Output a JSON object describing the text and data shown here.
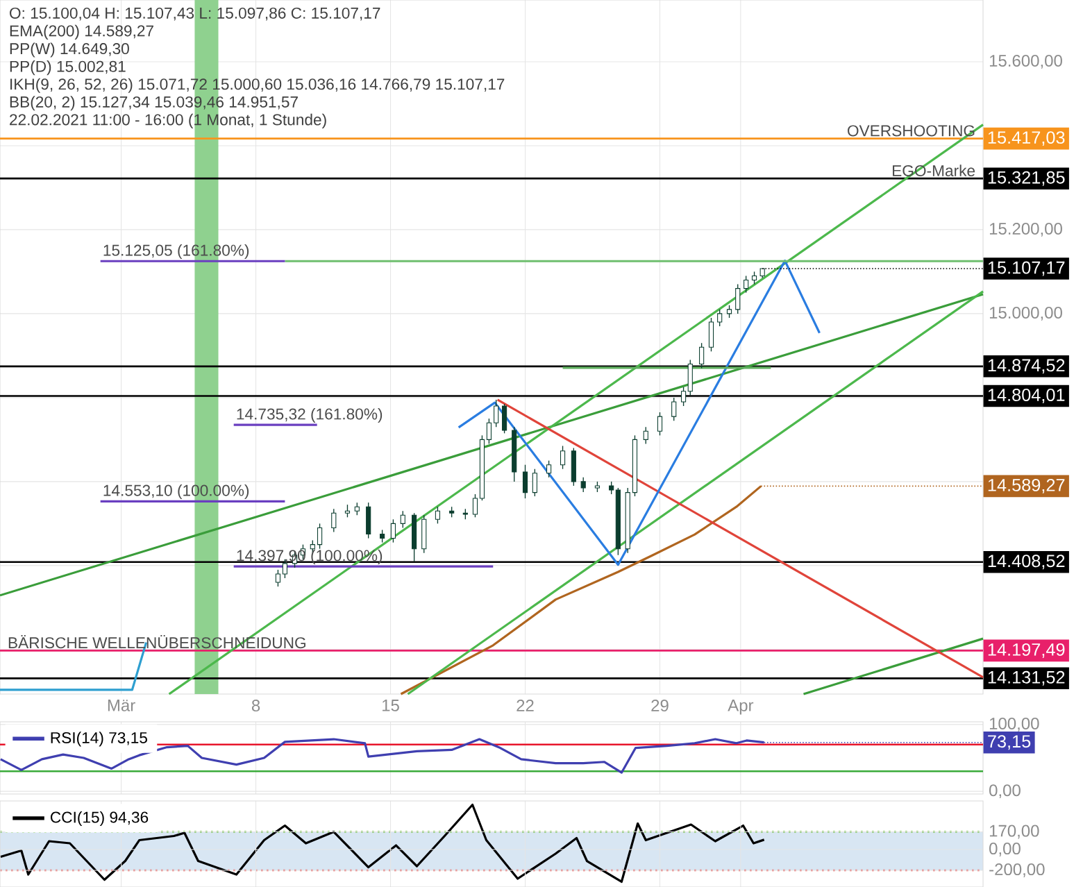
{
  "chart_data": [
    {
      "type": "candlestick",
      "title": "O: 15.100,04  H: 15.107,43  L: 15.097,86  C: 15.107,17",
      "subtitle": "22.02.2021 11:00 - 16:00  (1 Monat, 1 Stunde)",
      "xlim": [
        -5.3,
        45.8
      ],
      "ylim": [
        14094,
        15747
      ],
      "xticks": [
        {
          "value": 1,
          "label": "Mär"
        },
        8,
        15,
        22,
        29,
        {
          "value": 33.2,
          "label": "Apr"
        }
      ],
      "yticks": [
        {
          "value": 14200,
          "label": null
        },
        {
          "value": 14400,
          "label": null
        },
        {
          "value": 14600,
          "label": null
        },
        {
          "value": 14800,
          "label": null
        },
        {
          "value": 15000,
          "label": "15.000,00"
        },
        {
          "value": 15200,
          "label": "15.200,00"
        },
        {
          "value": 15400,
          "label": null
        },
        {
          "value": 15600,
          "label": "15.600,00"
        }
      ],
      "grid": true,
      "x": [
        9.15,
        9.51,
        10.02,
        10.45,
        10.95,
        11.32,
        12.05,
        12.76,
        13.26,
        13.85,
        14.57,
        15.14,
        15.64,
        16.23,
        16.74,
        17.45,
        18.18,
        18.89,
        19.4,
        19.76,
        20.12,
        20.49,
        20.92,
        21.43,
        22.0,
        22.5,
        23.23,
        23.95,
        24.52,
        25.02,
        25.75,
        26.48,
        26.83,
        27.33,
        27.7,
        28.27,
        29.0,
        29.73,
        30.23,
        30.58,
        31.17,
        31.67,
        32.11,
        32.61,
        33.05,
        33.48,
        33.91,
        34.33
      ],
      "ohlc": [
        [
          14360,
          14390,
          14350,
          14380
        ],
        [
          14380,
          14415,
          14370,
          14405
        ],
        [
          14405,
          14435,
          14395,
          14425
        ],
        [
          14425,
          14450,
          14415,
          14440
        ],
        [
          14440,
          14460,
          14430,
          14450
        ],
        [
          14450,
          14500,
          14440,
          14490
        ],
        [
          14490,
          14535,
          14480,
          14525
        ],
        [
          14525,
          14545,
          14515,
          14530
        ],
        [
          14530,
          14550,
          14520,
          14540
        ],
        [
          14540,
          14550,
          14465,
          14475
        ],
        [
          14475,
          14485,
          14455,
          14465
        ],
        [
          14465,
          14510,
          14455,
          14500
        ],
        [
          14500,
          14530,
          14490,
          14520
        ],
        [
          14520,
          14525,
          14410,
          14440
        ],
        [
          14440,
          14520,
          14430,
          14510
        ],
        [
          14510,
          14540,
          14500,
          14530
        ],
        [
          14530,
          14540,
          14515,
          14525
        ],
        [
          14525,
          14535,
          14510,
          14522
        ],
        [
          14522,
          14570,
          14515,
          14560
        ],
        [
          14560,
          14710,
          14555,
          14700
        ],
        [
          14700,
          14750,
          14690,
          14740
        ],
        [
          14740,
          14795,
          14730,
          14780
        ],
        [
          14780,
          14785,
          14715,
          14722
        ],
        [
          14722,
          14730,
          14600,
          14623
        ],
        [
          14623,
          14640,
          14560,
          14574
        ],
        [
          14574,
          14630,
          14565,
          14620
        ],
        [
          14620,
          14650,
          14610,
          14640
        ],
        [
          14640,
          14685,
          14630,
          14673
        ],
        [
          14673,
          14680,
          14590,
          14600
        ],
        [
          14600,
          14610,
          14575,
          14585
        ],
        [
          14585,
          14600,
          14575,
          14590
        ],
        [
          14590,
          14600,
          14570,
          14580
        ],
        [
          14580,
          14585,
          14425,
          14440
        ],
        [
          14440,
          14585,
          14430,
          14574
        ],
        [
          14574,
          14710,
          14565,
          14700
        ],
        [
          14700,
          14730,
          14690,
          14720
        ],
        [
          14720,
          14765,
          14710,
          14755
        ],
        [
          14755,
          14800,
          14745,
          14790
        ],
        [
          14790,
          14825,
          14780,
          14815
        ],
        [
          14815,
          14890,
          14805,
          14880
        ],
        [
          14880,
          14930,
          14870,
          14920
        ],
        [
          14920,
          14990,
          14910,
          14980
        ],
        [
          14980,
          15010,
          14970,
          15000
        ],
        [
          15000,
          15020,
          14990,
          15010
        ],
        [
          15010,
          15070,
          15000,
          15060
        ],
        [
          15060,
          15090,
          15050,
          15080
        ],
        [
          15080,
          15100,
          15070,
          15090
        ],
        [
          15090,
          15107.43,
          15085,
          15107.17
        ]
      ],
      "series": [
        {
          "type": "line",
          "color": "#b0651f",
          "x": [
            15.54,
            20.33,
            23.58,
            26.83,
            28.64,
            30.81,
            32.98,
            34.26
          ],
          "values": [
            14094,
            14210,
            14319,
            14385,
            14425,
            14474,
            14540,
            14589.27
          ]
        },
        {
          "type": "line",
          "color": "#3a9d3a",
          "x": [
            -5.3,
            45.8
          ],
          "values": [
            14329,
            15046
          ]
        },
        {
          "type": "line",
          "color": "#4cb84c",
          "x": [
            3.49,
            45.8
          ],
          "values": [
            14094,
            15450
          ]
        },
        {
          "type": "line",
          "color": "#4cb84c",
          "x": [
            15.9,
            45.8
          ],
          "values": [
            14094,
            15053
          ]
        },
        {
          "type": "line",
          "color": "#3a9d3a",
          "x": [
            36.47,
            45.8
          ],
          "values": [
            14094,
            14226
          ]
        },
        {
          "type": "line",
          "color": "#e0443a",
          "x": [
            20.56,
            45.8
          ],
          "values": [
            14795,
            14134
          ]
        },
        {
          "type": "line",
          "color": "#2a7de1",
          "x": [
            18.54,
            20.42,
            26.83,
            35.5,
            37.3
          ],
          "values": [
            14729,
            14788,
            14402,
            15126,
            14954
          ]
        },
        {
          "type": "line",
          "color": "#2e9fd0",
          "x": [
            -5.3,
            1.57,
            2.3
          ],
          "values": [
            14104,
            14104,
            14217
          ]
        },
        {
          "type": "line",
          "color": "#5fae5f",
          "x": [
            23.95,
            34.77
          ],
          "values": [
            14871,
            14871
          ]
        },
        {
          "type": "line",
          "color": "#6fbf6f",
          "x": [
            9.51,
            45.8
          ],
          "values": [
            15125,
            15125
          ]
        },
        {
          "type": "line",
          "color": "#6a3fc0",
          "x": [
            -0.08,
            9.51
          ],
          "values": [
            15125,
            15125
          ]
        },
        {
          "type": "line",
          "color": "#6a3fc0",
          "x": [
            6.85,
            11.18
          ],
          "values": [
            14735,
            14735
          ]
        },
        {
          "type": "line",
          "color": "#6a3fc0",
          "x": [
            -0.08,
            9.51
          ],
          "values": [
            14553,
            14553
          ]
        },
        {
          "type": "line",
          "color": "#6a3fc0",
          "x": [
            6.85,
            20.33
          ],
          "values": [
            14398,
            14398
          ]
        }
      ],
      "bands": [
        {
          "axis": "x",
          "from": 4.82,
          "to": 6.05,
          "color": "#8fd18f"
        }
      ],
      "ref_lines": [
        {
          "axis": "y",
          "value": 15417.03,
          "label": "15.417,03",
          "color": "#f7941d"
        },
        {
          "axis": "y",
          "value": 15321.85,
          "label": "15.321,85",
          "color": "#000000"
        },
        {
          "axis": "y",
          "value": 14874.52,
          "label": "14.874,52",
          "color": "#000000"
        },
        {
          "axis": "y",
          "value": 14804.01,
          "label": "14.804,01",
          "color": "#000000"
        },
        {
          "axis": "y",
          "value": 14408.52,
          "label": "14.408,52",
          "color": "#000000"
        },
        {
          "axis": "y",
          "value": 14197.49,
          "label": "14.197,49",
          "color": "#e8206a"
        },
        {
          "axis": "y",
          "value": 14131.52,
          "label": "14.131,52",
          "color": "#000000"
        }
      ],
      "annotations": [
        "EMA(200)  14.589,27",
        "PP(W)  14.649,30",
        "PP(D)  15.002,81",
        "IKH(9, 26, 52, 26)  15.071,72  15.000,60  15.036,16  14.766,79  15.107,17",
        "BB(20, 2)  15.127,34  15.039,46  14.951,57",
        {
          "text": "OVERSHOOTING",
          "x": 45.52,
          "y": 15417.03
        },
        {
          "text": "EGO-Marke",
          "x": 45.52,
          "y": 15321.85
        },
        {
          "text": "BÄRISCHE WELLENÜBERSCHNEIDUNG",
          "x": -5.02,
          "y": 14197.49
        },
        {
          "text": "15.125,05 (161.80%)",
          "x": -0.08,
          "y": 15125
        },
        {
          "text": "14.735,32 (161.80%)",
          "x": 6.85,
          "y": 14735
        },
        {
          "text": "14.553,10 (100.00%)",
          "x": -0.08,
          "y": 14553
        },
        {
          "text": "14.397,90 (100.00%)",
          "x": 6.85,
          "y": 14398
        },
        {
          "text": "15.107,17",
          "x": 34.33,
          "y": 15107.17
        },
        {
          "text": "14.589,27",
          "x": 34.26,
          "y": 14589.27
        }
      ]
    },
    {
      "type": "line",
      "xlim": [
        -5.3,
        45.8
      ],
      "ylim": [
        -4,
        104
      ],
      "tick_labels": "y",
      "grid": true,
      "legend": "top left",
      "xticks": [
        1,
        8,
        15,
        22,
        29,
        33.2
      ],
      "yticks": [
        {
          "value": 0,
          "label": "0,00"
        },
        {
          "value": 100,
          "label": "100,00"
        }
      ],
      "series": [
        {
          "name": "RSI(14)  73,15",
          "color": "#3f3fb0",
          "x": [
            -5.27,
            -4.19,
            -3.12,
            -2.02,
            -0.95,
            0.5,
            1.39,
            1.94,
            3.38,
            4.46,
            5.19,
            6.99,
            8.43,
            9.51,
            12.05,
            13.67,
            13.85,
            16.37,
            18.18,
            19.62,
            20.7,
            21.79,
            23.58,
            25.02,
            26.12,
            27.01,
            27.74,
            29.36,
            30.81,
            31.88,
            32.98,
            33.51,
            34.42
          ],
          "values": [
            48,
            32,
            48,
            55,
            50,
            34,
            48,
            54,
            66,
            68,
            50,
            40,
            50,
            74,
            78,
            72,
            52,
            60,
            62,
            78,
            65,
            48,
            42,
            42,
            44,
            28,
            65,
            68,
            72,
            78,
            72,
            76,
            73.15
          ]
        }
      ],
      "ref_lines": [
        {
          "axis": "y",
          "value": 70,
          "color": "#e8152b"
        },
        {
          "axis": "y",
          "value": 30,
          "color": "#3aaa3a"
        }
      ],
      "annotations": [
        {
          "text": "73,15",
          "x": 34.42,
          "y": 73.15
        }
      ]
    },
    {
      "type": "line",
      "xlim": [
        -5.3,
        45.8
      ],
      "ylim": [
        -360,
        467
      ],
      "tick_labels": "y",
      "grid": true,
      "legend": "top left",
      "xticks": [
        1,
        8,
        15,
        22,
        29,
        33.2
      ],
      "yticks": [
        {
          "value": -200,
          "label": "-200,00"
        },
        {
          "value": 0,
          "label": "0,00"
        },
        {
          "value": 170,
          "label": "170,00"
        }
      ],
      "series": [
        {
          "name": "CCI(15)  94,36",
          "color": "#000000",
          "x": [
            -5.27,
            -4.19,
            -3.83,
            -2.75,
            -1.67,
            0.13,
            1.21,
            1.94,
            3.74,
            4.29,
            5.0,
            6.99,
            8.43,
            9.51,
            10.6,
            12.05,
            13.85,
            15.29,
            16.37,
            17.81,
            19.26,
            19.98,
            21.61,
            23.58,
            24.67,
            25.21,
            27.01,
            27.85,
            28.27,
            30.62,
            31.88,
            33.33,
            33.87,
            34.42
          ],
          "values": [
            -70,
            -10,
            -240,
            80,
            60,
            -290,
            -110,
            90,
            130,
            160,
            -110,
            -240,
            90,
            230,
            60,
            170,
            -170,
            40,
            -160,
            130,
            430,
            90,
            -280,
            -40,
            110,
            -110,
            -310,
            250,
            90,
            240,
            80,
            230,
            60,
            94.36
          ]
        }
      ],
      "bands": [
        {
          "axis": "y",
          "from": -200,
          "to": 170,
          "color": "#d8e6f3"
        }
      ],
      "ref_lines": [
        {
          "axis": "y",
          "value": 170,
          "color": "#6abf3a",
          "line_style": "dotted"
        },
        {
          "axis": "y",
          "value": -200,
          "color": "#e85c5c",
          "line_style": "dotted"
        }
      ]
    }
  ]
}
